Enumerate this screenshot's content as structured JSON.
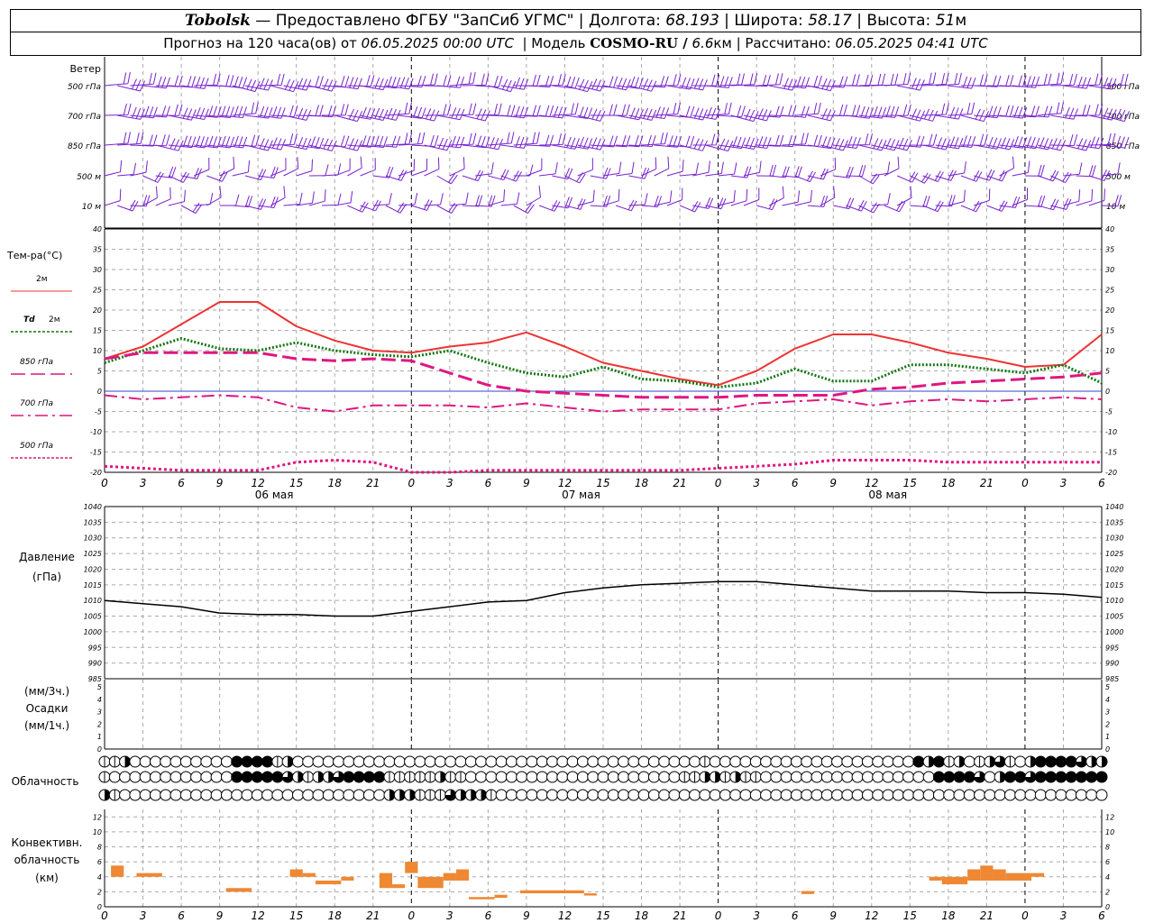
{
  "header": {
    "station": "Tobolsk",
    "provider": "— Предоставлено ФГБУ \"ЗапСиб УГМС\"",
    "lon_label": "Долгота:",
    "lon_value": "68.193",
    "lat_label": "Широта:",
    "lat_value": "58.17",
    "alt_label": "Высота:",
    "alt_value": "51",
    "alt_unit": "м",
    "forecast_prefix": "Прогноз на 120 часа(ов) от",
    "forecast_start": "06.05.2025 00:00 UTC",
    "model_label": "Модель",
    "model_name": "COSMO-RU /",
    "model_res": "6.6",
    "model_res_unit": "км",
    "calc_label": "Рассчитано:",
    "calc_time": "06.05.2025 04:41 UTC"
  },
  "colors": {
    "t2m": "#ee3333",
    "td2m": "#117711",
    "levels": "#e0177f",
    "wind": "#7722cc",
    "pressure": "#000000",
    "conv": "#ee8833",
    "zero_line": "#3344cc"
  },
  "chart_data": [
    {
      "type": "wind_barbs",
      "title": "Ветер",
      "levels": [
        "500 гПа",
        "700 гПа",
        "850 гПа",
        "500 м",
        "10 м"
      ]
    },
    {
      "type": "line",
      "ylabel": "Тем-ра(°C)",
      "ylim": [
        -20,
        40
      ],
      "yticks": [
        -20,
        -15,
        -10,
        -5,
        0,
        5,
        10,
        15,
        20,
        25,
        30,
        35,
        40
      ],
      "x": [
        0,
        3,
        6,
        9,
        12,
        15,
        18,
        21,
        24,
        27,
        30,
        33,
        36,
        39,
        42,
        45,
        48,
        51,
        54,
        57,
        60,
        63,
        66,
        69,
        72,
        75,
        78
      ],
      "xtick_labels": [
        "0",
        "3",
        "6",
        "9",
        "12",
        "15",
        "18",
        "21",
        "0",
        "3",
        "6",
        "9",
        "12",
        "15",
        "18",
        "21",
        "0",
        "3",
        "6",
        "9",
        "12",
        "15",
        "18",
        "21",
        "0",
        "3",
        "6"
      ],
      "day_labels": [
        {
          "x": 12,
          "label": "06 мая"
        },
        {
          "x": 36,
          "label": "07 мая"
        },
        {
          "x": 60,
          "label": "08 мая"
        }
      ],
      "series": [
        {
          "name": "2м",
          "style": "solid",
          "color": "t2m",
          "values": [
            8,
            11,
            16.5,
            22,
            22,
            16,
            12.5,
            10,
            9.5,
            11,
            12,
            14.5,
            11,
            7,
            5,
            3,
            1.5,
            5,
            10.5,
            14,
            14,
            12,
            9.5,
            8,
            6,
            6.5,
            14
          ]
        },
        {
          "name": "Td 2м",
          "style": "dotted",
          "color": "td2m",
          "values": [
            7,
            10,
            13,
            10.5,
            10,
            12,
            10,
            9,
            8.5,
            10,
            7,
            4.5,
            3.5,
            6,
            3,
            2.5,
            1,
            2,
            5.5,
            2.5,
            2.5,
            6.5,
            6.5,
            5.5,
            4.5,
            6.5,
            2
          ]
        },
        {
          "name": "850 гПа",
          "style": "longdash",
          "color": "levels",
          "values": [
            8,
            9.5,
            9.5,
            9.5,
            9.5,
            8,
            7.5,
            8,
            7.5,
            4.5,
            1.5,
            0,
            -0.5,
            -1,
            -1.5,
            -1.5,
            -1.5,
            -1,
            -1,
            -1,
            0.5,
            1,
            2,
            2.5,
            3,
            3.5,
            4.5
          ]
        },
        {
          "name": "700 гПа",
          "style": "dashdot",
          "color": "levels",
          "values": [
            -1,
            -2,
            -1.5,
            -1,
            -1.5,
            -4,
            -5,
            -3.5,
            -3.5,
            -3.5,
            -4,
            -3,
            -4,
            -5,
            -4.5,
            -4.5,
            -4.5,
            -3,
            -2.5,
            -2,
            -3.5,
            -2.5,
            -2,
            -2.5,
            -2,
            -1.5,
            -2
          ]
        },
        {
          "name": "500 гПа",
          "style": "dotted",
          "color": "levels",
          "values": [
            -18.5,
            -19,
            -19.5,
            -19.5,
            -19.5,
            -17.5,
            -17,
            -17.5,
            -20,
            -20,
            -19.5,
            -19.5,
            -19.5,
            -19.5,
            -19.5,
            -19.5,
            -19,
            -18.5,
            -18,
            -17,
            -17,
            -17,
            -17.5,
            -17.5,
            -17.5,
            -17.5,
            -17.5
          ]
        }
      ]
    },
    {
      "type": "line",
      "ylabel": "Давление",
      "yunit": "(гПа)",
      "ylim": [
        985,
        1040
      ],
      "yticks": [
        985,
        990,
        995,
        1000,
        1005,
        1010,
        1015,
        1020,
        1025,
        1030,
        1035,
        1040
      ],
      "x": [
        0,
        3,
        6,
        9,
        12,
        15,
        18,
        21,
        24,
        27,
        30,
        33,
        36,
        39,
        42,
        45,
        48,
        51,
        54,
        57,
        60,
        63,
        66,
        69,
        72,
        75,
        78
      ],
      "series": [
        {
          "color": "pressure",
          "values": [
            1010,
            1009,
            1008,
            1006,
            1005.5,
            1005.5,
            1005,
            1005,
            1006.5,
            1008,
            1009.5,
            1010,
            1012.5,
            1014,
            1015,
            1015.5,
            1016,
            1016,
            1015,
            1014,
            1013,
            1013,
            1013,
            1012.5,
            1012.5,
            1012,
            1011
          ]
        }
      ]
    },
    {
      "type": "bar",
      "ylabel": "Осадки",
      "yunits": [
        "(мм/3ч.)",
        "(мм/1ч.)"
      ],
      "ylim": [
        0,
        5
      ],
      "yticks": [
        0,
        1,
        2,
        3,
        4,
        5
      ],
      "values": []
    },
    {
      "type": "cloud_cover_symbols",
      "title": "Облачность",
      "rows": [
        "112000000000044441200000000000000000000000000000000000000001000000000000000000004241201231024444322",
        "100000000000044444321223444411111211000000000000000000000112212110000000000000000044443024434444444",
        "210000000000000000000000000022211132221000000000000000000000000000000000000000000000000000000000000"
      ]
    },
    {
      "type": "bar",
      "ylabel": "Конвективн. облачность (км)",
      "ylim": [
        0,
        13
      ],
      "yticks": [
        0,
        2,
        4,
        6,
        8,
        10,
        12
      ],
      "bars": [
        {
          "x0": 0.5,
          "x1": 1.5,
          "bottom": 4,
          "top": 5.5
        },
        {
          "x0": 2.5,
          "x1": 4.5,
          "bottom": 4,
          "top": 4.5
        },
        {
          "x0": 9.5,
          "x1": 11.5,
          "bottom": 2,
          "top": 2.5
        },
        {
          "x0": 14.5,
          "x1": 15.5,
          "bottom": 4,
          "top": 5
        },
        {
          "x0": 15.5,
          "x1": 16.5,
          "bottom": 4,
          "top": 4.5
        },
        {
          "x0": 16.5,
          "x1": 18.5,
          "bottom": 3,
          "top": 3.5
        },
        {
          "x0": 18.5,
          "x1": 19.5,
          "bottom": 3.5,
          "top": 4
        },
        {
          "x0": 21.5,
          "x1": 22.5,
          "bottom": 2.5,
          "top": 4.5
        },
        {
          "x0": 22.5,
          "x1": 23.5,
          "bottom": 2.5,
          "top": 3
        },
        {
          "x0": 23.5,
          "x1": 24.5,
          "bottom": 4.5,
          "top": 6
        },
        {
          "x0": 24.5,
          "x1": 26.5,
          "bottom": 2.5,
          "top": 4
        },
        {
          "x0": 26.5,
          "x1": 27.5,
          "bottom": 3.5,
          "top": 4.5
        },
        {
          "x0": 27.5,
          "x1": 28.5,
          "bottom": 3.5,
          "top": 5
        },
        {
          "x0": 28.5,
          "x1": 30.5,
          "bottom": 1,
          "top": 1.3
        },
        {
          "x0": 30.5,
          "x1": 31.5,
          "bottom": 1.2,
          "top": 1.6
        },
        {
          "x0": 32.5,
          "x1": 37.5,
          "bottom": 1.8,
          "top": 2.2
        },
        {
          "x0": 37.5,
          "x1": 38.5,
          "bottom": 1.5,
          "top": 1.8
        },
        {
          "x0": 54.5,
          "x1": 55.5,
          "bottom": 1.7,
          "top": 2.1
        },
        {
          "x0": 64.5,
          "x1": 65.5,
          "bottom": 3.5,
          "top": 4
        },
        {
          "x0": 65.5,
          "x1": 67.5,
          "bottom": 3,
          "top": 4
        },
        {
          "x0": 67.5,
          "x1": 68.5,
          "bottom": 3.5,
          "top": 5
        },
        {
          "x0": 68.5,
          "x1": 69.5,
          "bottom": 3.5,
          "top": 5.5
        },
        {
          "x0": 69.5,
          "x1": 70.5,
          "bottom": 3.5,
          "top": 5
        },
        {
          "x0": 70.5,
          "x1": 72.5,
          "bottom": 3.5,
          "top": 4.5
        },
        {
          "x0": 72.5,
          "x1": 73.5,
          "bottom": 4,
          "top": 4.5
        }
      ]
    }
  ]
}
